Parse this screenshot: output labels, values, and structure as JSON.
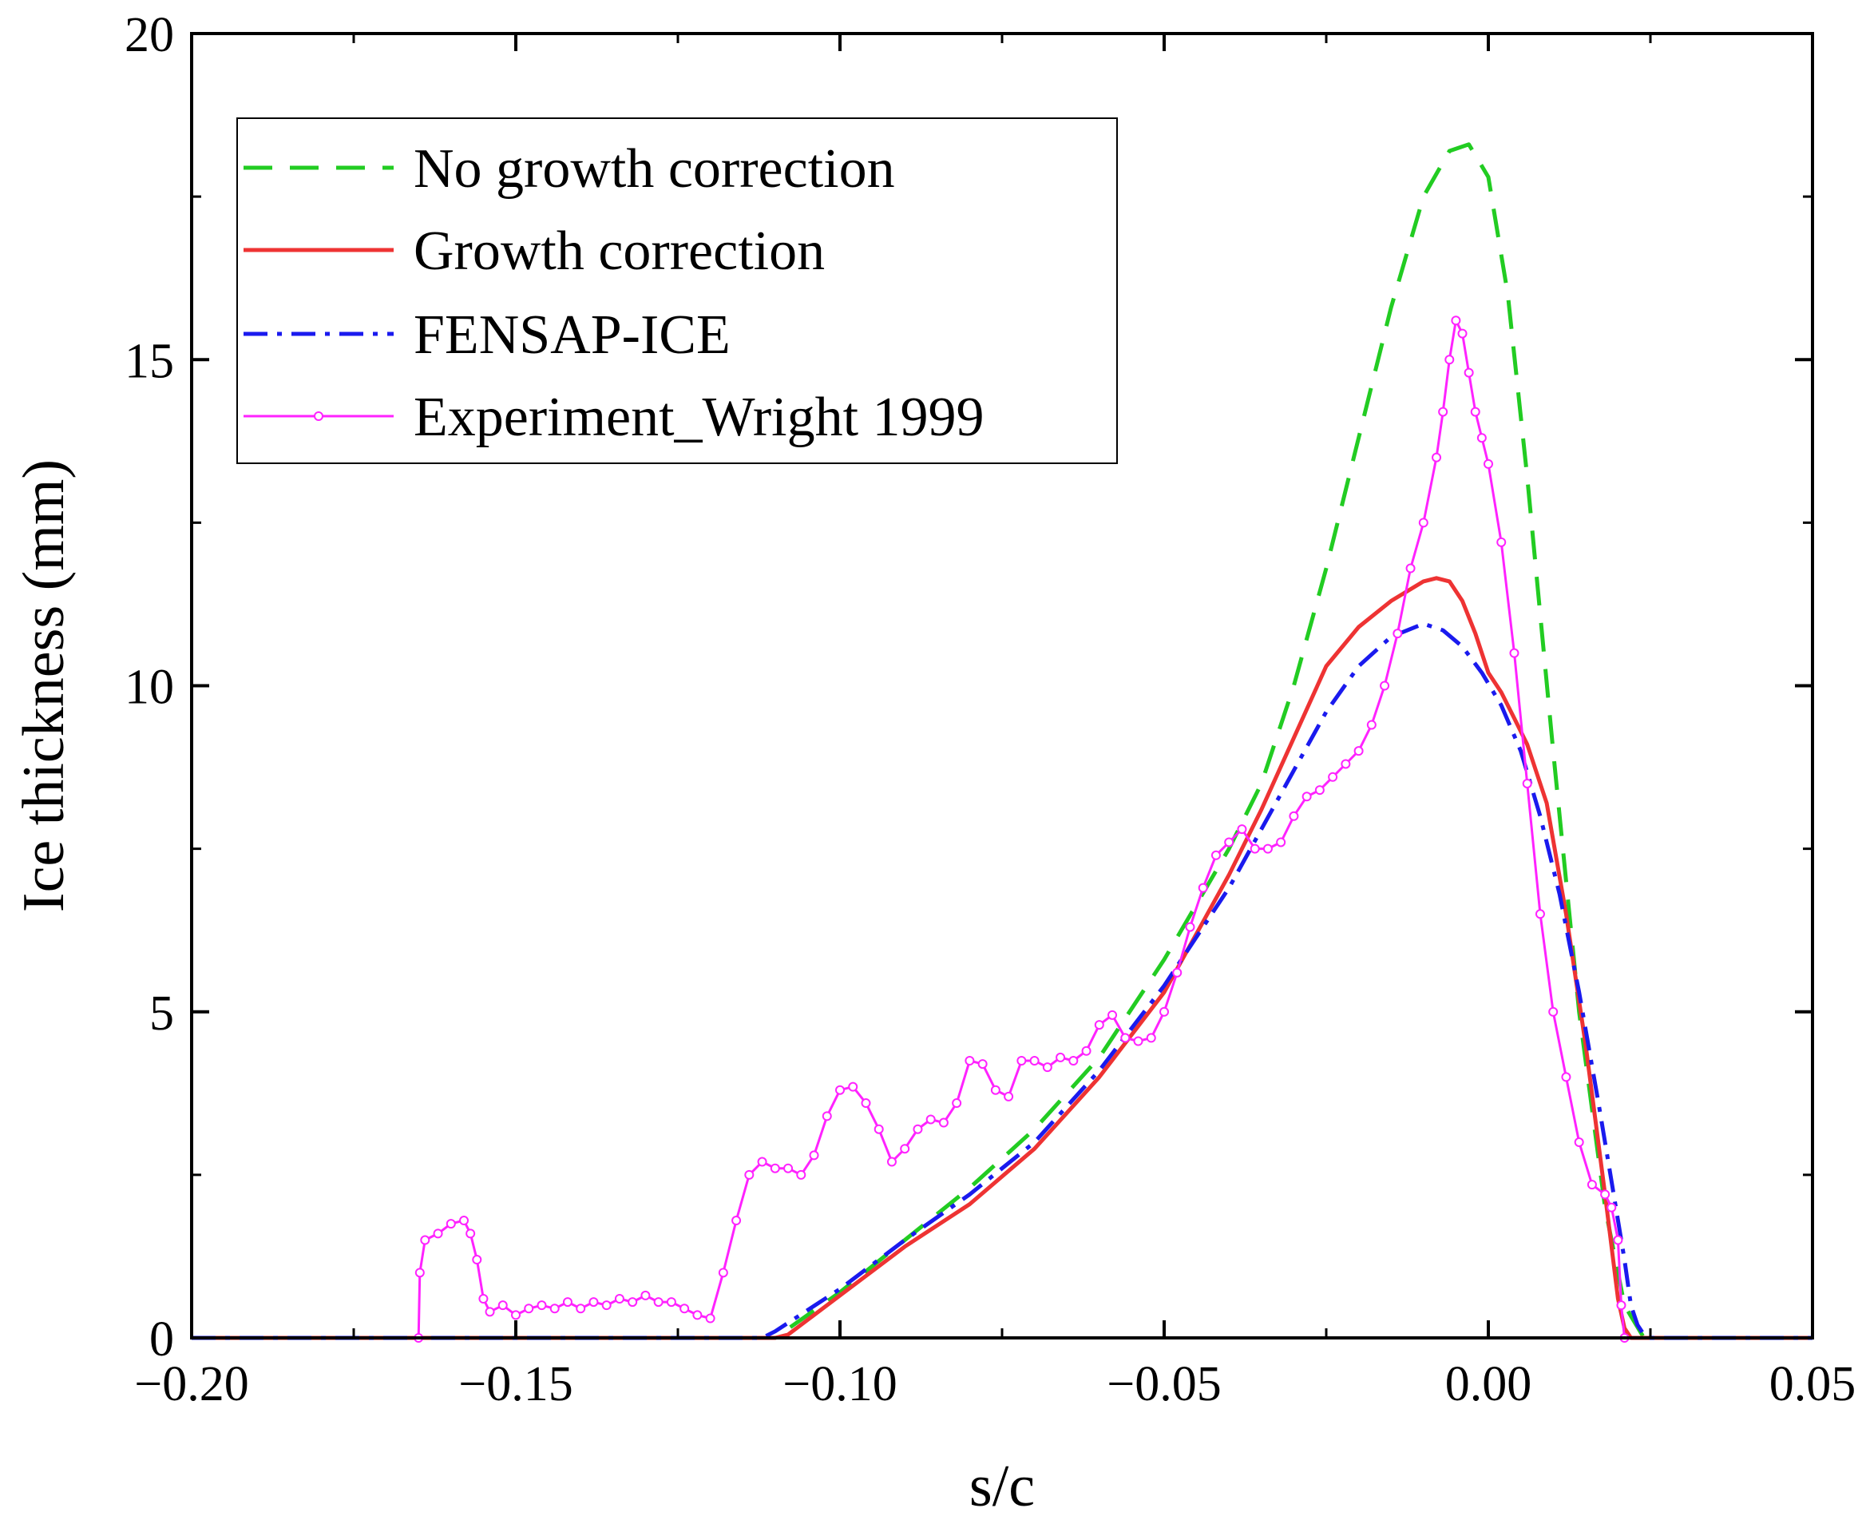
{
  "chart_data": {
    "type": "line",
    "title": "",
    "xlabel": "s/c",
    "ylabel": "Ice thickness (mm)",
    "xlim": [
      -0.2,
      0.05
    ],
    "ylim": [
      0,
      20
    ],
    "xticks": [
      -0.2,
      -0.15,
      -0.1,
      -0.05,
      0.0,
      0.05
    ],
    "xtick_labels": [
      "−0.20",
      "−0.15",
      "−0.10",
      "−0.05",
      "0.00",
      "0.05"
    ],
    "yticks": [
      0,
      5,
      10,
      15,
      20
    ],
    "ytick_labels": [
      "0",
      "5",
      "10",
      "15",
      "20"
    ],
    "grid": false,
    "legend_position": "top-left",
    "series": [
      {
        "name": "No growth correction",
        "color": "#22cc22",
        "style": "dashed",
        "x": [
          -0.2,
          -0.11,
          -0.1,
          -0.09,
          -0.08,
          -0.07,
          -0.06,
          -0.05,
          -0.04,
          -0.035,
          -0.03,
          -0.025,
          -0.02,
          -0.015,
          -0.01,
          -0.006,
          -0.003,
          0.0,
          0.003,
          0.006,
          0.01,
          0.014,
          0.018,
          0.021,
          0.024,
          0.05
        ],
        "y": [
          0,
          0,
          0.7,
          1.5,
          2.3,
          3.2,
          4.3,
          5.8,
          7.5,
          8.5,
          10.0,
          11.8,
          13.8,
          15.8,
          17.5,
          18.2,
          18.3,
          17.8,
          16.0,
          13.2,
          9.0,
          5.0,
          2.0,
          0.5,
          0,
          0
        ]
      },
      {
        "name": "Growth correction",
        "color": "#ee3333",
        "style": "solid",
        "x": [
          -0.2,
          -0.11,
          -0.108,
          -0.1,
          -0.09,
          -0.08,
          -0.07,
          -0.06,
          -0.05,
          -0.045,
          -0.04,
          -0.035,
          -0.03,
          -0.025,
          -0.02,
          -0.015,
          -0.01,
          -0.008,
          -0.006,
          -0.004,
          -0.002,
          0.0,
          0.002,
          0.004,
          0.006,
          0.009,
          0.012,
          0.015,
          0.018,
          0.02,
          0.021,
          0.022,
          0.05
        ],
        "y": [
          0,
          0,
          0.05,
          0.65,
          1.4,
          2.05,
          2.9,
          4.0,
          5.3,
          6.2,
          7.1,
          8.1,
          9.2,
          10.3,
          10.9,
          11.3,
          11.6,
          11.65,
          11.6,
          11.3,
          10.8,
          10.2,
          9.9,
          9.5,
          9.1,
          8.2,
          6.5,
          4.5,
          2.2,
          0.6,
          0.15,
          0,
          0
        ]
      },
      {
        "name": "FENSAP-ICE",
        "color": "#1a1aee",
        "style": "dashdot",
        "x": [
          -0.2,
          -0.112,
          -0.11,
          -0.1,
          -0.09,
          -0.08,
          -0.07,
          -0.06,
          -0.05,
          -0.04,
          -0.035,
          -0.03,
          -0.025,
          -0.02,
          -0.015,
          -0.01,
          -0.007,
          -0.004,
          -0.001,
          0.002,
          0.005,
          0.008,
          0.011,
          0.014,
          0.017,
          0.019,
          0.021,
          0.022,
          0.023,
          0.024,
          0.025,
          0.05
        ],
        "y": [
          0,
          0,
          0.1,
          0.75,
          1.5,
          2.2,
          3.0,
          4.1,
          5.4,
          6.9,
          7.8,
          8.7,
          9.6,
          10.3,
          10.75,
          10.95,
          10.85,
          10.6,
          10.2,
          9.7,
          9.0,
          8.0,
          6.8,
          5.3,
          3.6,
          2.4,
          1.2,
          0.5,
          0.2,
          0.05,
          0,
          0
        ]
      },
      {
        "name": "Experiment_Wright 1999",
        "color": "#ff22ff",
        "style": "solid-markers",
        "x": [
          -0.2,
          -0.165,
          -0.1648,
          -0.164,
          -0.162,
          -0.16,
          -0.158,
          -0.157,
          -0.156,
          -0.155,
          -0.154,
          -0.152,
          -0.15,
          -0.148,
          -0.146,
          -0.144,
          -0.142,
          -0.14,
          -0.138,
          -0.136,
          -0.134,
          -0.132,
          -0.13,
          -0.128,
          -0.126,
          -0.124,
          -0.122,
          -0.12,
          -0.118,
          -0.116,
          -0.114,
          -0.112,
          -0.11,
          -0.108,
          -0.106,
          -0.104,
          -0.102,
          -0.1,
          -0.098,
          -0.096,
          -0.094,
          -0.092,
          -0.09,
          -0.088,
          -0.086,
          -0.084,
          -0.082,
          -0.08,
          -0.078,
          -0.076,
          -0.074,
          -0.072,
          -0.07,
          -0.068,
          -0.066,
          -0.064,
          -0.062,
          -0.06,
          -0.058,
          -0.056,
          -0.054,
          -0.052,
          -0.05,
          -0.048,
          -0.046,
          -0.044,
          -0.042,
          -0.04,
          -0.038,
          -0.036,
          -0.034,
          -0.032,
          -0.03,
          -0.028,
          -0.026,
          -0.024,
          -0.022,
          -0.02,
          -0.018,
          -0.016,
          -0.014,
          -0.012,
          -0.01,
          -0.008,
          -0.007,
          -0.006,
          -0.005,
          -0.004,
          -0.003,
          -0.002,
          -0.001,
          0.0,
          0.002,
          0.004,
          0.006,
          0.008,
          0.01,
          0.012,
          0.014,
          0.016,
          0.018,
          0.019,
          0.02,
          0.0205,
          0.021,
          0.05
        ],
        "y": [
          0,
          0,
          1.0,
          1.5,
          1.6,
          1.75,
          1.8,
          1.6,
          1.2,
          0.6,
          0.4,
          0.5,
          0.35,
          0.45,
          0.5,
          0.45,
          0.55,
          0.45,
          0.55,
          0.5,
          0.6,
          0.55,
          0.65,
          0.55,
          0.55,
          0.45,
          0.35,
          0.3,
          1.0,
          1.8,
          2.5,
          2.7,
          2.6,
          2.6,
          2.5,
          2.8,
          3.4,
          3.8,
          3.85,
          3.6,
          3.2,
          2.7,
          2.9,
          3.2,
          3.35,
          3.3,
          3.6,
          4.25,
          4.2,
          3.8,
          3.7,
          4.25,
          4.25,
          4.15,
          4.3,
          4.25,
          4.4,
          4.8,
          4.95,
          4.6,
          4.55,
          4.6,
          5.0,
          5.6,
          6.3,
          6.9,
          7.4,
          7.6,
          7.8,
          7.5,
          7.5,
          7.6,
          8.0,
          8.3,
          8.4,
          8.6,
          8.8,
          9.0,
          9.4,
          10.0,
          10.8,
          11.8,
          12.5,
          13.5,
          14.2,
          15.0,
          15.6,
          15.4,
          14.8,
          14.2,
          13.8,
          13.4,
          12.2,
          10.5,
          8.5,
          6.5,
          5.0,
          4.0,
          3.0,
          2.35,
          2.2,
          2.0,
          1.5,
          0.5,
          0,
          0
        ]
      }
    ]
  }
}
